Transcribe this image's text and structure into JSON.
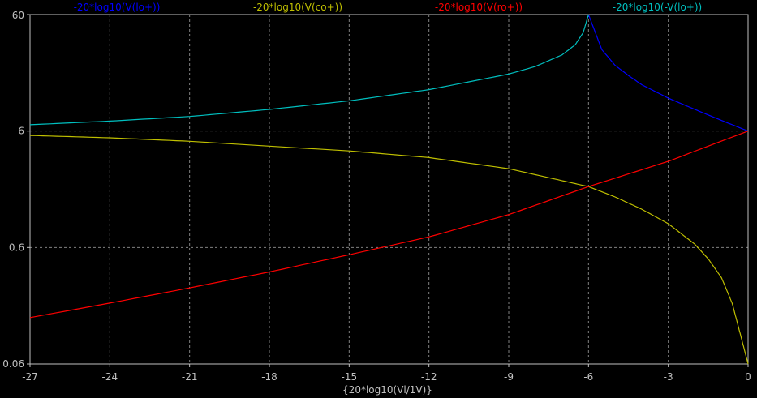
{
  "chart_data": {
    "type": "line",
    "title": "",
    "xlabel": "{20*log10(Vl/1V)}",
    "ylabel": "",
    "xlim": [
      -27,
      0
    ],
    "ylim": [
      0.06,
      60
    ],
    "yscale": "log",
    "grid": true,
    "legend_position": "top",
    "x_ticks": [
      -27,
      -24,
      -21,
      -18,
      -15,
      -12,
      -9,
      -6,
      -3,
      0
    ],
    "x_tick_labels": [
      "-27",
      "-24",
      "-21",
      "-18",
      "-15",
      "-12",
      "-9",
      "-6",
      "-3",
      "0"
    ],
    "y_ticks": [
      0.06,
      0.6,
      6,
      60
    ],
    "y_tick_labels": [
      "0.06",
      "0.6",
      "6",
      "60"
    ],
    "series": [
      {
        "name": "-20*log10(V(lo+))",
        "color": "#0000ff",
        "x": [
          -6,
          -5.5,
          -5,
          -4.5,
          -4,
          -3,
          -2,
          -1,
          0
        ],
        "y": [
          60,
          30,
          22,
          18,
          15,
          11.5,
          9.2,
          7.4,
          6
        ]
      },
      {
        "name": "-20*log10(V(co+))",
        "color": "#bfbf00",
        "x": [
          -27,
          -24,
          -21,
          -18,
          -15,
          -12,
          -9,
          -7,
          -6,
          -5,
          -4,
          -3,
          -2,
          -1.5,
          -1,
          -0.6,
          -0.3,
          0
        ],
        "y": [
          5.5,
          5.25,
          4.9,
          4.45,
          4.05,
          3.55,
          2.85,
          2.25,
          2.0,
          1.63,
          1.28,
          0.96,
          0.64,
          0.48,
          0.33,
          0.2,
          0.11,
          0.06
        ]
      },
      {
        "name": "-20*log10(V(ro+))",
        "color": "#ff0000",
        "x": [
          -27,
          -24,
          -21,
          -18,
          -15,
          -12,
          -9,
          -6,
          -3,
          0
        ],
        "y": [
          0.15,
          0.2,
          0.27,
          0.37,
          0.52,
          0.74,
          1.15,
          2.0,
          3.3,
          6
        ]
      },
      {
        "name": "-20*log10(-V(lo+))",
        "color": "#00bfbf",
        "x": [
          -27,
          -24,
          -21,
          -18,
          -15,
          -12,
          -9,
          -8,
          -7,
          -6.5,
          -6.2,
          -6
        ],
        "y": [
          6.8,
          7.3,
          8.0,
          9.2,
          10.9,
          13.6,
          18.5,
          21.5,
          27,
          33,
          42,
          60
        ]
      }
    ]
  }
}
